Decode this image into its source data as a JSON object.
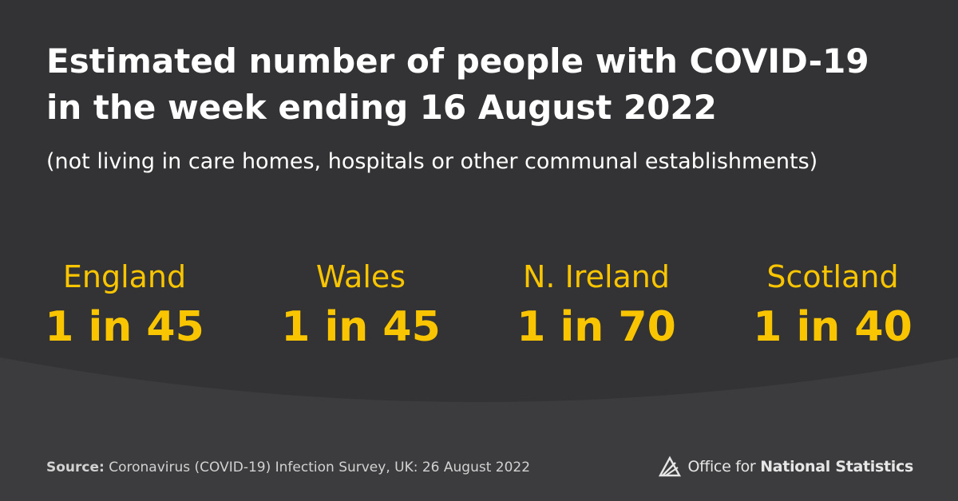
{
  "title_line1": "Estimated number of people with COVID-19",
  "title_line2": "in the week ending 16 August 2022",
  "subtitle": "(not living in care homes, hospitals or other communal establishments)",
  "stats": [
    {
      "region": "England",
      "value": "1 in 45"
    },
    {
      "region": "Wales",
      "value": "1 in 45"
    },
    {
      "region": "N. Ireland",
      "value": "1 in 70"
    },
    {
      "region": "Scotland",
      "value": "1 in 40"
    }
  ],
  "source": {
    "label": "Source:",
    "text": "Coronavirus (COVID-19) Infection Survey, UK: 26 August 2022"
  },
  "logo": {
    "text_regular": "Office for",
    "text_bold": "National Statistics"
  },
  "colors": {
    "background": "#333335",
    "background_lower": "#3c3c3e",
    "accent": "#f8c500",
    "text": "#ffffff"
  }
}
